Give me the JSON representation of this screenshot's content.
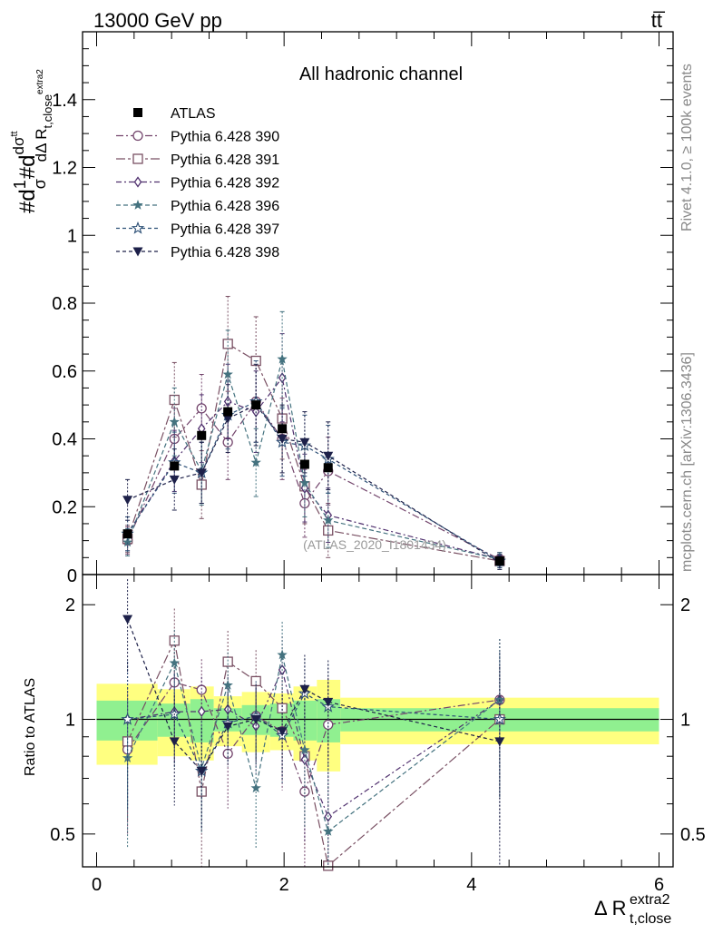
{
  "header": {
    "left": "13000 GeV pp",
    "right": "tt̅"
  },
  "side_labels": {
    "rivet": "Rivet 4.1.0, ≥ 100k events",
    "mcplots": "mcplots.cern.ch [arXiv:1306.3436]"
  },
  "watermark": "(ATLAS_2020_I1801434)",
  "chart_data": {
    "type": "scatter",
    "title": "All hadronic channel",
    "ylabel_main": "#d1/σ#d dσ^tt/dΔ R_t,close^extra2",
    "ylabel_ratio": "Ratio to ATLAS",
    "xlabel": "Δ R",
    "xlabel_sup": "extra2",
    "xlabel_sub": "t,close",
    "xlim": [
      -0.15,
      6.15
    ],
    "ylim_main": [
      0,
      1.6
    ],
    "ylim_ratio": [
      0.41,
      2.4
    ],
    "x_ticks": [
      "0",
      "2",
      "4",
      "6"
    ],
    "y_ticks_main": [
      "0.2",
      "0.4",
      "0.6",
      "0.8",
      "1",
      "1.2",
      "1.4"
    ],
    "y_ticks_ratio": [
      "0.5",
      "1",
      "2"
    ],
    "x": [
      0.33,
      0.83,
      1.12,
      1.4,
      1.7,
      1.98,
      2.22,
      2.47,
      4.3
    ],
    "bin_edges": [
      0,
      0.65,
      1.0,
      1.25,
      1.55,
      1.85,
      2.1,
      2.35,
      2.6,
      6.0
    ],
    "reference": {
      "name": "ATLAS",
      "values": [
        0.12,
        0.32,
        0.41,
        0.48,
        0.5,
        0.43,
        0.325,
        0.315,
        0.04
      ],
      "band_green": [
        0.12,
        0.1,
        0.13,
        0.07,
        0.09,
        0.1,
        0.12,
        0.13,
        0.07
      ],
      "band_yellow": [
        0.24,
        0.2,
        0.22,
        0.15,
        0.18,
        0.17,
        0.22,
        0.27,
        0.14
      ]
    },
    "series": [
      {
        "name": "Pythia 6.428 390",
        "marker": "circle-open",
        "color": "#74466d",
        "dash": "8 3 2 3",
        "values": [
          0.1,
          0.4,
          0.49,
          0.39,
          0.51,
          0.4,
          0.21,
          0.305,
          0.045
        ],
        "errors": [
          0.04,
          0.09,
          0.1,
          0.11,
          0.12,
          0.12,
          0.1,
          0.1,
          0.02
        ]
      },
      {
        "name": "Pythia 6.428 391",
        "marker": "square-open",
        "color": "#795063",
        "dash": "10 3 3 3",
        "values": [
          0.105,
          0.515,
          0.265,
          0.68,
          0.63,
          0.46,
          0.26,
          0.13,
          0.04
        ],
        "errors": [
          0.04,
          0.11,
          0.1,
          0.14,
          0.13,
          0.12,
          0.11,
          0.08,
          0.02
        ]
      },
      {
        "name": "Pythia 6.428 392",
        "marker": "diamond-open",
        "color": "#50306e",
        "dash": "6 3 2 3",
        "values": [
          0.12,
          0.335,
          0.43,
          0.51,
          0.48,
          0.58,
          0.255,
          0.175,
          0.045
        ],
        "errors": [
          0.05,
          0.09,
          0.1,
          0.11,
          0.12,
          0.13,
          0.1,
          0.08,
          0.02
        ]
      },
      {
        "name": "Pythia 6.428 396",
        "marker": "star-filled",
        "color": "#44727f",
        "dash": "5 3",
        "values": [
          0.095,
          0.45,
          0.305,
          0.59,
          0.33,
          0.635,
          0.27,
          0.16,
          0.045
        ],
        "errors": [
          0.04,
          0.1,
          0.1,
          0.13,
          0.1,
          0.14,
          0.1,
          0.08,
          0.02
        ]
      },
      {
        "name": "Pythia 6.428 397",
        "marker": "star-open",
        "color": "#2d5076",
        "dash": "4 3",
        "values": [
          0.12,
          0.33,
          0.3,
          0.47,
          0.51,
          0.39,
          0.38,
          0.34,
          0.04
        ],
        "errors": [
          0.05,
          0.09,
          0.09,
          0.1,
          0.12,
          0.1,
          0.09,
          0.1,
          0.02
        ]
      },
      {
        "name": "Pythia 6.428 398",
        "marker": "triangle-down-filled",
        "color": "#1d2049",
        "dash": "4 3",
        "values": [
          0.22,
          0.28,
          0.3,
          0.46,
          0.5,
          0.4,
          0.39,
          0.35,
          0.035
        ],
        "errors": [
          0.06,
          0.09,
          0.09,
          0.1,
          0.12,
          0.1,
          0.09,
          0.1,
          0.02
        ]
      }
    ]
  }
}
